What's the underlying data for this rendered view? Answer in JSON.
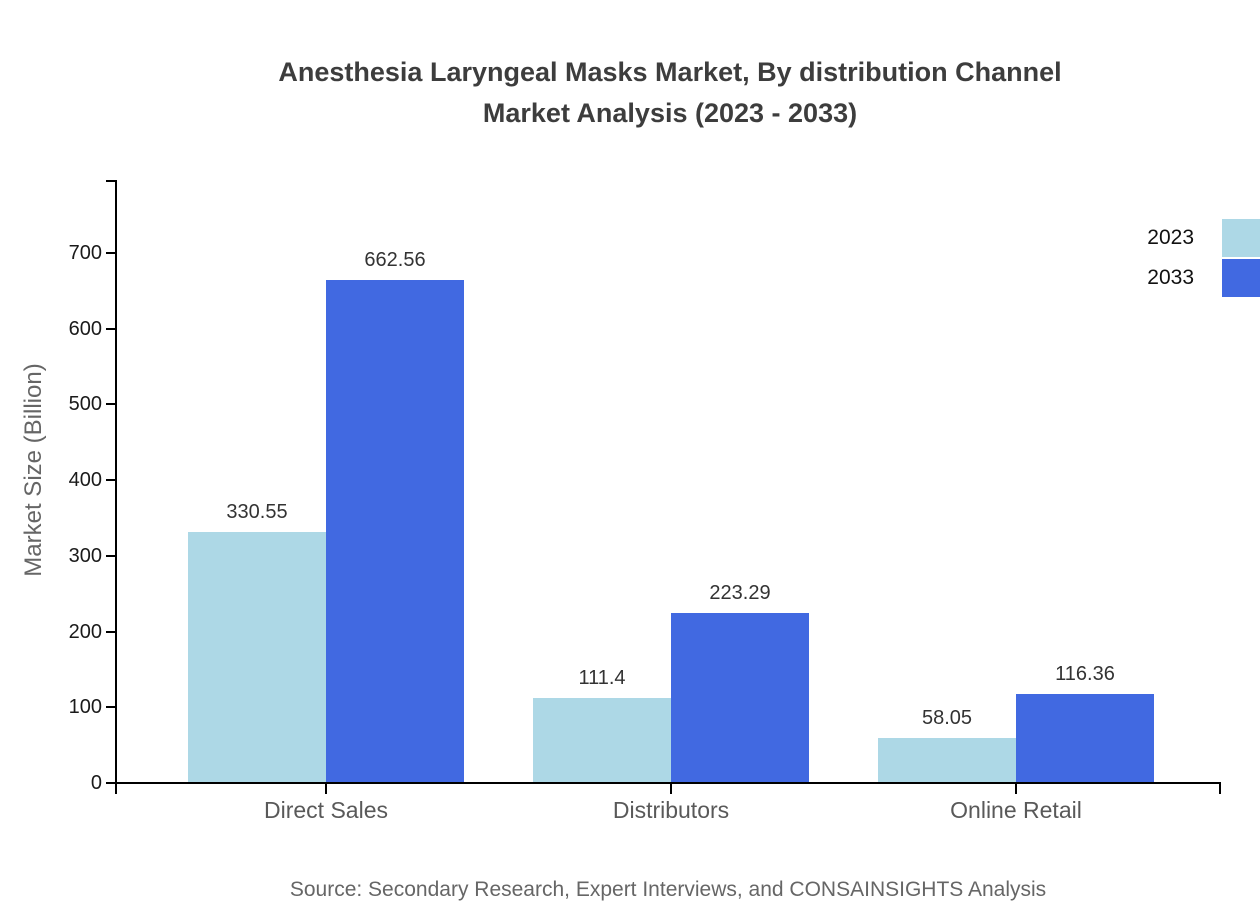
{
  "chart_data": {
    "type": "bar",
    "title_line1": "Anesthesia Laryngeal Masks Market, By distribution Channel",
    "title_line2": "Market Analysis (2023 - 2033)",
    "ylabel": "Market Size (Billion)",
    "categories": [
      "Direct Sales",
      "Distributors",
      "Online Retail"
    ],
    "series": [
      {
        "name": "2023",
        "color": "#add8e6",
        "values": [
          330.55,
          111.4,
          58.05
        ]
      },
      {
        "name": "2033",
        "color": "#4169e1",
        "values": [
          662.56,
          223.29,
          116.36
        ]
      }
    ],
    "yticks": [
      0,
      100,
      200,
      300,
      400,
      500,
      600,
      700
    ],
    "ylim": [
      0,
      795
    ],
    "grid": false,
    "legend_position": "top-right",
    "axis_color": "#000000",
    "source": "Source: Secondary Research, Expert Interviews, and CONSAINSIGHTS Analysis"
  }
}
